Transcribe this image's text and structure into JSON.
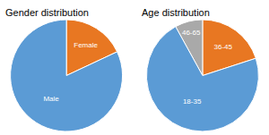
{
  "chart_data": [
    {
      "type": "pie",
      "title": "Gender distribution",
      "categories": [
        "Female",
        "Male"
      ],
      "values": [
        18,
        82
      ],
      "colors": [
        "#E87722",
        "#5B9BD5"
      ]
    },
    {
      "type": "pie",
      "title": "Age distribution",
      "categories": [
        "36-45",
        "46-65",
        "18-35"
      ],
      "values": [
        20,
        8,
        72
      ],
      "colors": [
        "#E87722",
        "#A9A9A9",
        "#5B9BD5"
      ]
    }
  ]
}
